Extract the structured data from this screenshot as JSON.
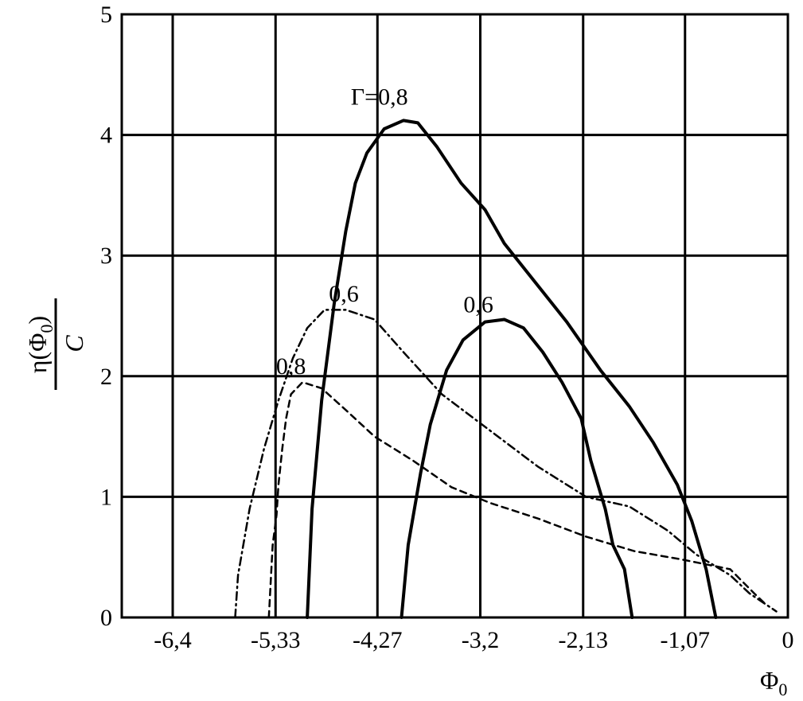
{
  "chart_data": {
    "type": "line",
    "xlabel": {
      "base": "Φ",
      "sub": "0"
    },
    "ylabel": {
      "num_pre": "η(Φ",
      "num_sub": "0",
      "num_post": ")",
      "den": "C"
    },
    "xlim": [
      -6.93,
      0
    ],
    "ylim": [
      0,
      5
    ],
    "grid": true,
    "x_ticks": [
      {
        "value": -6.4,
        "label": "-6,4"
      },
      {
        "value": -5.33,
        "label": "-5,33"
      },
      {
        "value": -4.27,
        "label": "-4,27"
      },
      {
        "value": -3.2,
        "label": "-3,2"
      },
      {
        "value": -2.13,
        "label": "-2,13"
      },
      {
        "value": -1.07,
        "label": "-1,07"
      },
      {
        "value": 0,
        "label": "0"
      }
    ],
    "y_ticks": [
      {
        "value": 0,
        "label": "0"
      },
      {
        "value": 1,
        "label": "1"
      },
      {
        "value": 2,
        "label": "2"
      },
      {
        "value": 3,
        "label": "3"
      },
      {
        "value": 4,
        "label": "4"
      },
      {
        "value": 5,
        "label": "5"
      }
    ],
    "series": [
      {
        "style": "solid",
        "color": "#000000",
        "points": [
          [
            -5.0,
            0
          ],
          [
            -4.95,
            0.9
          ],
          [
            -4.85,
            1.8
          ],
          [
            -4.72,
            2.6
          ],
          [
            -4.6,
            3.2
          ],
          [
            -4.5,
            3.6
          ],
          [
            -4.38,
            3.85
          ],
          [
            -4.2,
            4.05
          ],
          [
            -4.0,
            4.12
          ],
          [
            -3.85,
            4.1
          ],
          [
            -3.65,
            3.9
          ],
          [
            -3.4,
            3.6
          ],
          [
            -3.15,
            3.38
          ],
          [
            -2.95,
            3.1
          ],
          [
            -2.6,
            2.75
          ],
          [
            -2.3,
            2.45
          ],
          [
            -1.95,
            2.05
          ],
          [
            -1.65,
            1.75
          ],
          [
            -1.4,
            1.45
          ],
          [
            -1.15,
            1.1
          ],
          [
            -1.0,
            0.8
          ],
          [
            -0.85,
            0.4
          ],
          [
            -0.75,
            0.0
          ]
        ]
      },
      {
        "style": "solid",
        "color": "#000000",
        "points": [
          [
            -4.02,
            0
          ],
          [
            -3.95,
            0.6
          ],
          [
            -3.82,
            1.2
          ],
          [
            -3.72,
            1.6
          ],
          [
            -3.55,
            2.05
          ],
          [
            -3.38,
            2.3
          ],
          [
            -3.15,
            2.45
          ],
          [
            -2.95,
            2.47
          ],
          [
            -2.75,
            2.4
          ],
          [
            -2.55,
            2.2
          ],
          [
            -2.35,
            1.95
          ],
          [
            -2.15,
            1.65
          ],
          [
            -2.05,
            1.3
          ],
          [
            -1.9,
            0.9
          ],
          [
            -1.82,
            0.6
          ],
          [
            -1.7,
            0.4
          ],
          [
            -1.62,
            0.0
          ]
        ]
      },
      {
        "style": "dash-dot",
        "color": "#000000",
        "points": [
          [
            -5.75,
            0
          ],
          [
            -5.72,
            0.35
          ],
          [
            -5.6,
            0.9
          ],
          [
            -5.45,
            1.4
          ],
          [
            -5.3,
            1.8
          ],
          [
            -5.15,
            2.15
          ],
          [
            -5.0,
            2.4
          ],
          [
            -4.82,
            2.55
          ],
          [
            -4.6,
            2.55
          ],
          [
            -4.3,
            2.47
          ],
          [
            -4.0,
            2.2
          ],
          [
            -3.6,
            1.85
          ],
          [
            -3.1,
            1.55
          ],
          [
            -2.6,
            1.25
          ],
          [
            -2.1,
            1.0
          ],
          [
            -1.65,
            0.92
          ],
          [
            -1.25,
            0.72
          ],
          [
            -0.95,
            0.52
          ],
          [
            -0.6,
            0.35
          ],
          [
            -0.4,
            0.2
          ],
          [
            -0.12,
            0.05
          ]
        ]
      },
      {
        "style": "dashed",
        "color": "#000000",
        "points": [
          [
            -5.4,
            0
          ],
          [
            -5.38,
            0.3
          ],
          [
            -5.36,
            0.6
          ],
          [
            -5.32,
            0.85
          ],
          [
            -5.3,
            1.1
          ],
          [
            -5.26,
            1.4
          ],
          [
            -5.22,
            1.65
          ],
          [
            -5.17,
            1.85
          ],
          [
            -5.05,
            1.95
          ],
          [
            -4.85,
            1.9
          ],
          [
            -4.6,
            1.72
          ],
          [
            -4.3,
            1.5
          ],
          [
            -3.9,
            1.3
          ],
          [
            -3.5,
            1.08
          ],
          [
            -3.1,
            0.95
          ],
          [
            -2.6,
            0.82
          ],
          [
            -2.1,
            0.67
          ],
          [
            -1.6,
            0.55
          ],
          [
            -1.1,
            0.48
          ],
          [
            -0.6,
            0.4
          ],
          [
            -0.35,
            0.2
          ],
          [
            -0.22,
            0.1
          ]
        ]
      }
    ],
    "annotations": [
      {
        "pre": "Γ",
        "eq": "=",
        "post": "0,8",
        "x": -4.25,
        "y": 4.25
      },
      {
        "text": "0,6",
        "x": -4.62,
        "y": 2.62
      },
      {
        "text": "0,6",
        "x": -3.22,
        "y": 2.53
      },
      {
        "text": "0,8",
        "x": -5.17,
        "y": 2.02
      }
    ]
  }
}
